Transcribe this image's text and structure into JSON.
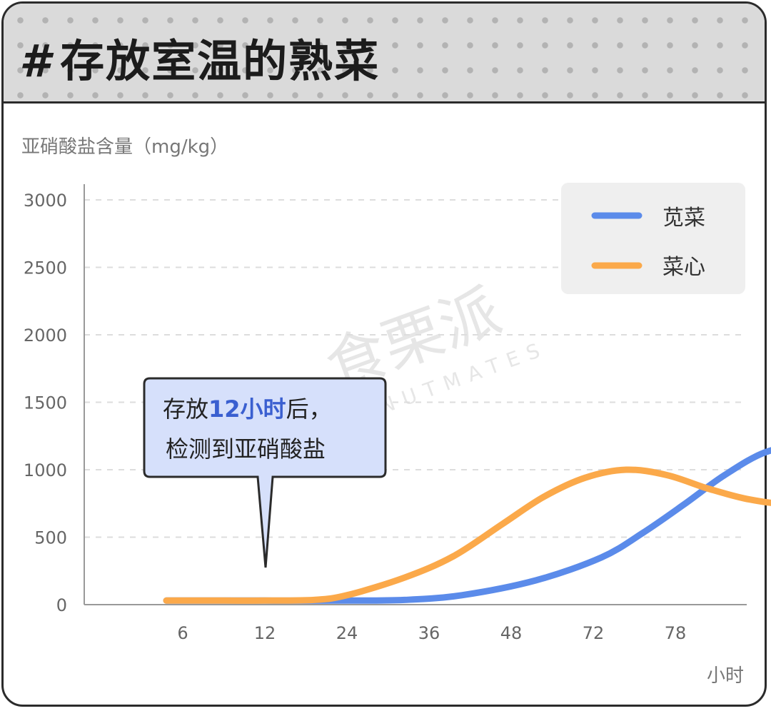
{
  "header": {
    "hash_icon": "#",
    "title": "存放室温的熟菜"
  },
  "watermark": {
    "text": "食栗派",
    "sub": "NUTMATES"
  },
  "callout": {
    "line1_pre": "存放",
    "line1_highlight": "12小时",
    "line1_post": "后，",
    "line2": "检测到亚硝酸盐"
  },
  "colors": {
    "series_blue": "#5b8bea",
    "series_orange": "#fba94a",
    "callout_bg": "#d6e0fb",
    "highlight": "#3a5fd0"
  },
  "chart_data": {
    "type": "line",
    "ylabel": "亚硝酸盐含量（mg/kg）",
    "xlabel": "小时",
    "ylim": [
      0,
      3000
    ],
    "yticks": [
      0,
      500,
      1000,
      1500,
      2000,
      2500,
      3000
    ],
    "categories": [
      "6",
      "12",
      "24",
      "36",
      "48",
      "72",
      "78"
    ],
    "grid": true,
    "legend_position": "top-right",
    "series": [
      {
        "name": "苋菜",
        "color": "#5b8bea",
        "points": [
          [
            -0.2,
            30
          ],
          [
            0,
            30
          ],
          [
            0.5,
            30
          ],
          [
            1,
            30
          ],
          [
            2,
            30
          ],
          [
            2.7,
            35
          ],
          [
            3.4,
            70
          ],
          [
            4.3,
            180
          ],
          [
            5.1,
            350
          ],
          [
            5.6,
            530
          ],
          [
            6.1,
            740
          ],
          [
            6.6,
            960
          ],
          [
            7.1,
            1130
          ],
          [
            7.6,
            1180
          ],
          [
            8.2,
            1140
          ],
          [
            8.3,
            1130
          ]
        ]
      },
      {
        "name": "菜心",
        "color": "#fba94a",
        "points": [
          [
            -0.2,
            30
          ],
          [
            0,
            30
          ],
          [
            0.5,
            30
          ],
          [
            1,
            30
          ],
          [
            1.6,
            35
          ],
          [
            2,
            70
          ],
          [
            2.7,
            200
          ],
          [
            3.3,
            360
          ],
          [
            3.9,
            600
          ],
          [
            4.4,
            800
          ],
          [
            4.9,
            940
          ],
          [
            5.4,
            1000
          ],
          [
            5.9,
            960
          ],
          [
            6.4,
            860
          ],
          [
            6.9,
            780
          ],
          [
            7.4,
            745
          ],
          [
            8.3,
            745
          ]
        ]
      }
    ]
  }
}
